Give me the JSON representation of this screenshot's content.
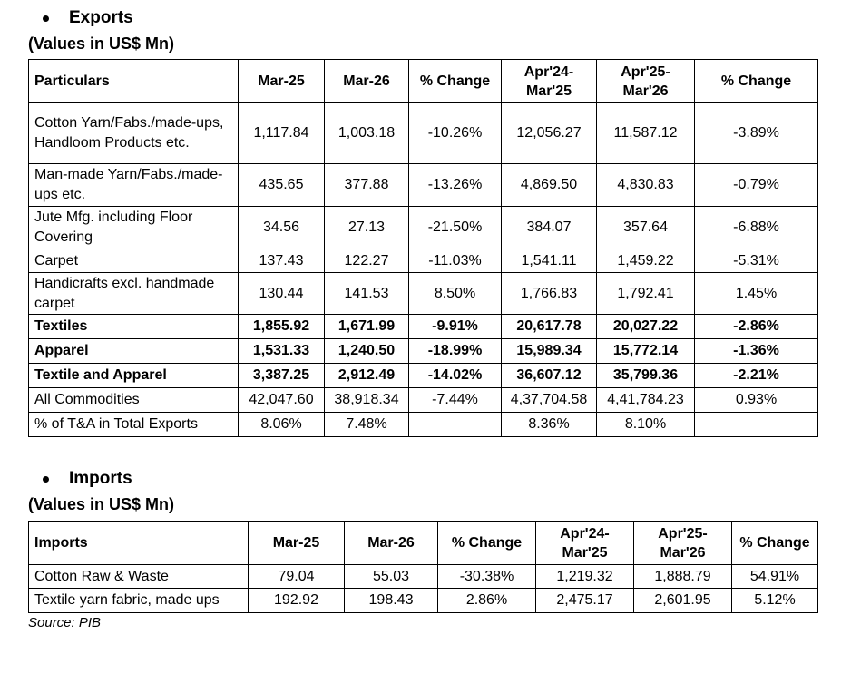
{
  "exports": {
    "heading": "Exports",
    "units": "(Values in US$ Mn)",
    "headers": [
      "Particulars",
      "Mar-25",
      "Mar-26",
      "% Change",
      "Apr'24-Mar'25",
      "Apr'25-Mar'26",
      "% Change"
    ],
    "rows": [
      [
        "Cotton Yarn/Fabs./made-ups, Handloom Products etc.",
        "1,117.84",
        "1,003.18",
        "-10.26%",
        "12,056.27",
        "11,587.12",
        "-3.89%"
      ],
      [
        "Man-made Yarn/Fabs./made-ups etc.",
        "435.65",
        "377.88",
        "-13.26%",
        "4,869.50",
        "4,830.83",
        "-0.79%"
      ],
      [
        "Jute Mfg. including Floor Covering",
        "34.56",
        "27.13",
        "-21.50%",
        "384.07",
        "357.64",
        "-6.88%"
      ],
      [
        "Carpet",
        "137.43",
        "122.27",
        "-11.03%",
        "1,541.11",
        "1,459.22",
        "-5.31%"
      ],
      [
        "Handicrafts excl. handmade carpet",
        "130.44",
        "141.53",
        "8.50%",
        "1,766.83",
        "1,792.41",
        "1.45%"
      ],
      [
        "Textiles",
        "1,855.92",
        "1,671.99",
        "-9.91%",
        "20,617.78",
        "20,027.22",
        "-2.86%"
      ],
      [
        "Apparel",
        "1,531.33",
        "1,240.50",
        "-18.99%",
        "15,989.34",
        "15,772.14",
        "-1.36%"
      ],
      [
        "Textile and Apparel",
        "3,387.25",
        "2,912.49",
        "-14.02%",
        "36,607.12",
        "35,799.36",
        "-2.21%"
      ],
      [
        "All Commodities",
        "42,047.60",
        "38,918.34",
        "-7.44%",
        "4,37,704.58",
        "4,41,784.23",
        "0.93%"
      ],
      [
        "% of T&A in Total Exports",
        "8.06%",
        "7.48%",
        "",
        "8.36%",
        "8.10%",
        ""
      ]
    ]
  },
  "imports": {
    "heading": "Imports",
    "units": "(Values in US$ Mn)",
    "headers": [
      "Imports",
      "Mar-25",
      "Mar-26",
      "% Change",
      "Apr'24-Mar'25",
      "Apr'25-Mar'26",
      "% Change"
    ],
    "rows": [
      [
        "Cotton Raw & Waste",
        "79.04",
        "55.03",
        "-30.38%",
        "1,219.32",
        "1,888.79",
        "54.91%"
      ],
      [
        "Textile yarn fabric, made ups",
        "192.92",
        "198.43",
        "2.86%",
        "2,475.17",
        "2,601.95",
        "5.12%"
      ]
    ]
  },
  "source": "Source: PIB"
}
